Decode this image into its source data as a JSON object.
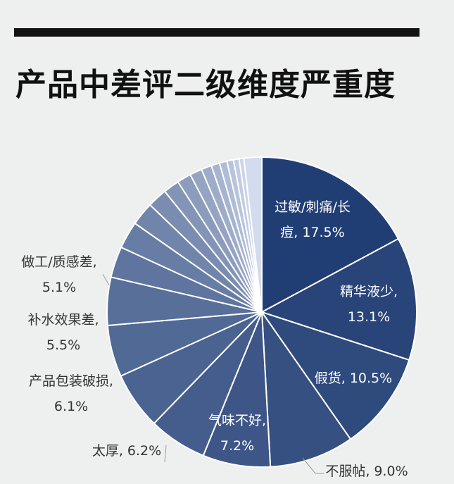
{
  "header": {
    "title": "产品中差评二级维度严重度"
  },
  "colors": {
    "background": "#eef0ef",
    "bar": "#111111",
    "slice_start": "#213e74",
    "slice_end": "#d3dbee",
    "label_outside": "#333333",
    "label_inside": "#ffffff"
  },
  "chart_data": {
    "type": "pie",
    "title": "产品中差评二级维度严重度",
    "start_angle": "12 o'clock",
    "direction": "clockwise",
    "slices": [
      {
        "label": "过敏/刺痛/长痘",
        "value": 17.5,
        "text_lines": [
          "过敏/刺痛/长",
          "痘, 17.5%"
        ]
      },
      {
        "label": "精华液少",
        "value": 13.1,
        "text_lines": [
          "精华液少,",
          "13.1%"
        ]
      },
      {
        "label": "假货",
        "value": 10.5,
        "text_lines": [
          "假货, 10.5%"
        ]
      },
      {
        "label": "不服帖",
        "value": 9.0,
        "text_lines": [
          "不服帖, 9.0%"
        ]
      },
      {
        "label": "气味不好",
        "value": 7.2,
        "text_lines": [
          "气味不好,",
          "7.2%"
        ]
      },
      {
        "label": "太厚",
        "value": 6.2,
        "text_lines": [
          "太厚, 6.2%"
        ]
      },
      {
        "label": "产品包装破损",
        "value": 6.1,
        "text_lines": [
          "产品包装破损,",
          "6.1%"
        ]
      },
      {
        "label": "补水效果差",
        "value": 5.5,
        "text_lines": [
          "补水效果差,",
          "5.5%"
        ]
      },
      {
        "label": "做工/质感差",
        "value": 5.1,
        "text_lines": [
          "做工/质感差,",
          "5.1%"
        ]
      },
      {
        "label": "",
        "value": 3.3
      },
      {
        "label": "",
        "value": 2.9
      },
      {
        "label": "",
        "value": 2.5
      },
      {
        "label": "",
        "value": 2.1
      },
      {
        "label": "",
        "value": 1.7
      },
      {
        "label": "",
        "value": 1.5
      },
      {
        "label": "",
        "value": 1.3
      },
      {
        "label": "",
        "value": 1.1
      },
      {
        "label": "",
        "value": 0.9
      },
      {
        "label": "",
        "value": 0.8
      },
      {
        "label": "",
        "value": 0.7
      },
      {
        "label": "",
        "value": 0.6
      },
      {
        "label": "",
        "value": 0.5
      },
      {
        "label": "",
        "value": 1.9
      }
    ]
  }
}
